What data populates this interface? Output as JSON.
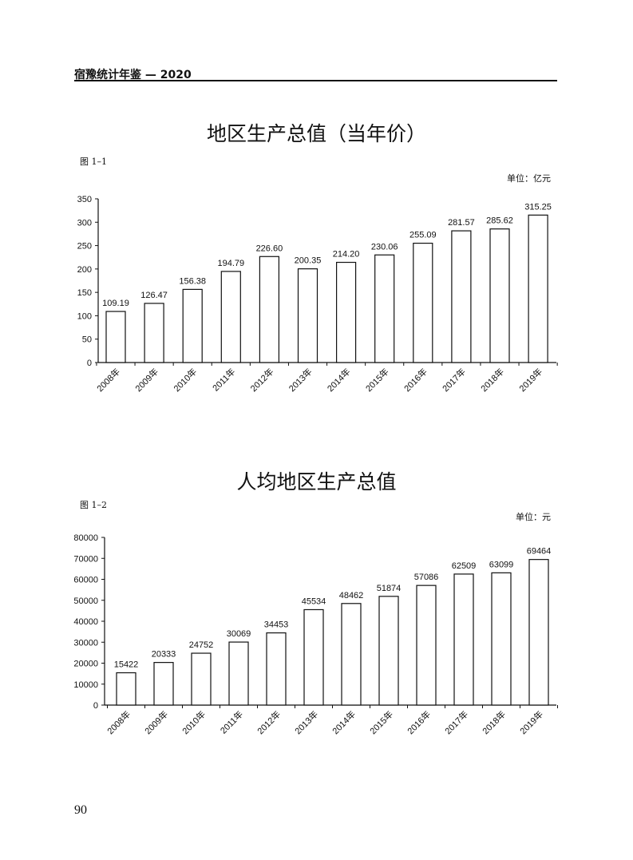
{
  "header": {
    "running_title": "宿豫统计年鉴 — 2020"
  },
  "page_number": "90",
  "chart_data": [
    {
      "type": "bar",
      "title": "地区生产总值（当年价）",
      "figure_label": "图 1–1",
      "unit": "单位：亿元",
      "categories": [
        "2008年",
        "2009年",
        "2010年",
        "2011年",
        "2012年",
        "2013年",
        "2014年",
        "2015年",
        "2016年",
        "2017年",
        "2018年",
        "2019年"
      ],
      "values": [
        109.19,
        126.47,
        156.38,
        194.79,
        226.6,
        200.35,
        214.2,
        230.06,
        255.09,
        281.57,
        285.62,
        315.25
      ],
      "value_labels": [
        "109.19",
        "126.47",
        "156.38",
        "194.79",
        "226.60",
        "200.35",
        "214.20",
        "230.06",
        "255.09",
        "281.57",
        "285.62",
        "315.25"
      ],
      "yticks": [
        0,
        50,
        100,
        150,
        200,
        250,
        300,
        350
      ],
      "ylim": [
        0,
        350
      ],
      "xlabel": "",
      "ylabel": "",
      "grid": false
    },
    {
      "type": "bar",
      "title": "人均地区生产总值",
      "figure_label": "图 1–2",
      "unit": "单位：元",
      "categories": [
        "2008年",
        "2009年",
        "2010年",
        "2011年",
        "2012年",
        "2013年",
        "2014年",
        "2015年",
        "2016年",
        "2017年",
        "2018年",
        "2019年"
      ],
      "values": [
        15422,
        20333,
        24752,
        30069,
        34453,
        45534,
        48462,
        51874,
        57086,
        62509,
        63099,
        69464
      ],
      "value_labels": [
        "15422",
        "20333",
        "24752",
        "30069",
        "34453",
        "45534",
        "48462",
        "51874",
        "57086",
        "62509",
        "63099",
        "69464"
      ],
      "yticks": [
        0,
        10000,
        20000,
        30000,
        40000,
        50000,
        60000,
        70000,
        80000
      ],
      "ylim": [
        0,
        80000
      ],
      "xlabel": "",
      "ylabel": "",
      "grid": false
    }
  ]
}
